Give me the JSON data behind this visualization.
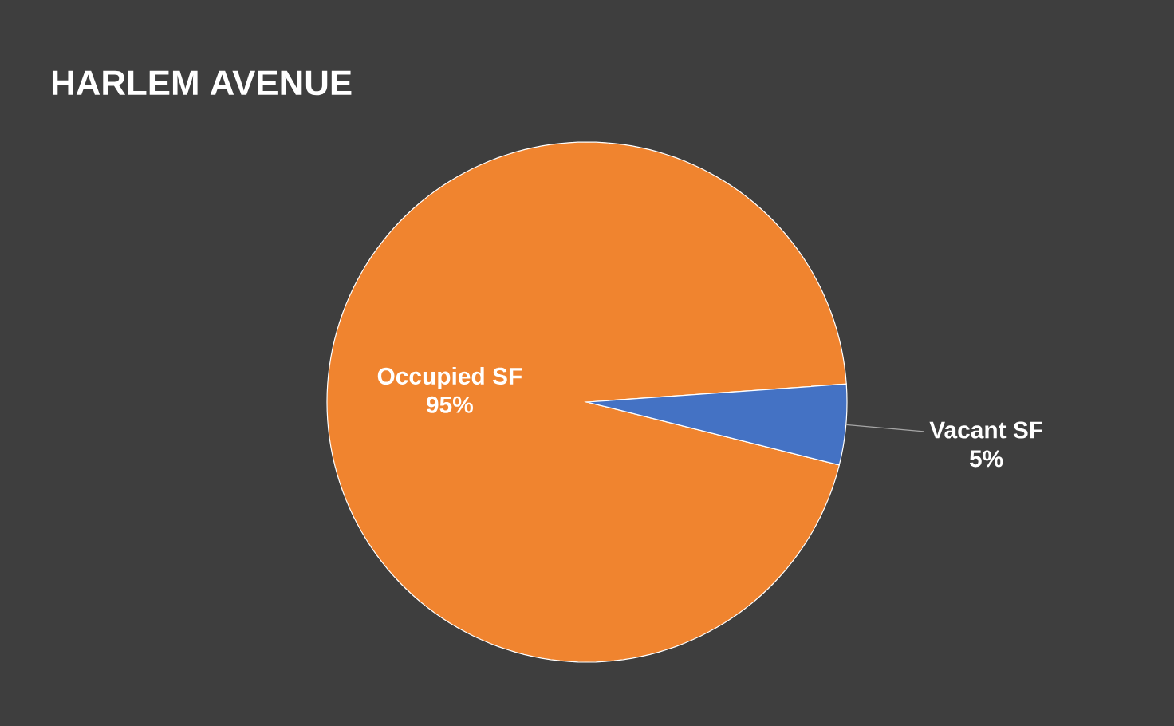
{
  "chart_data": {
    "type": "pie",
    "title": "HARLEM AVENUE",
    "categories": [
      "Occupied SF",
      "Vacant SF"
    ],
    "values": [
      95,
      5
    ],
    "value_labels": [
      "95%",
      "5%"
    ],
    "colors": [
      "#f0842f",
      "#4472c4"
    ]
  }
}
